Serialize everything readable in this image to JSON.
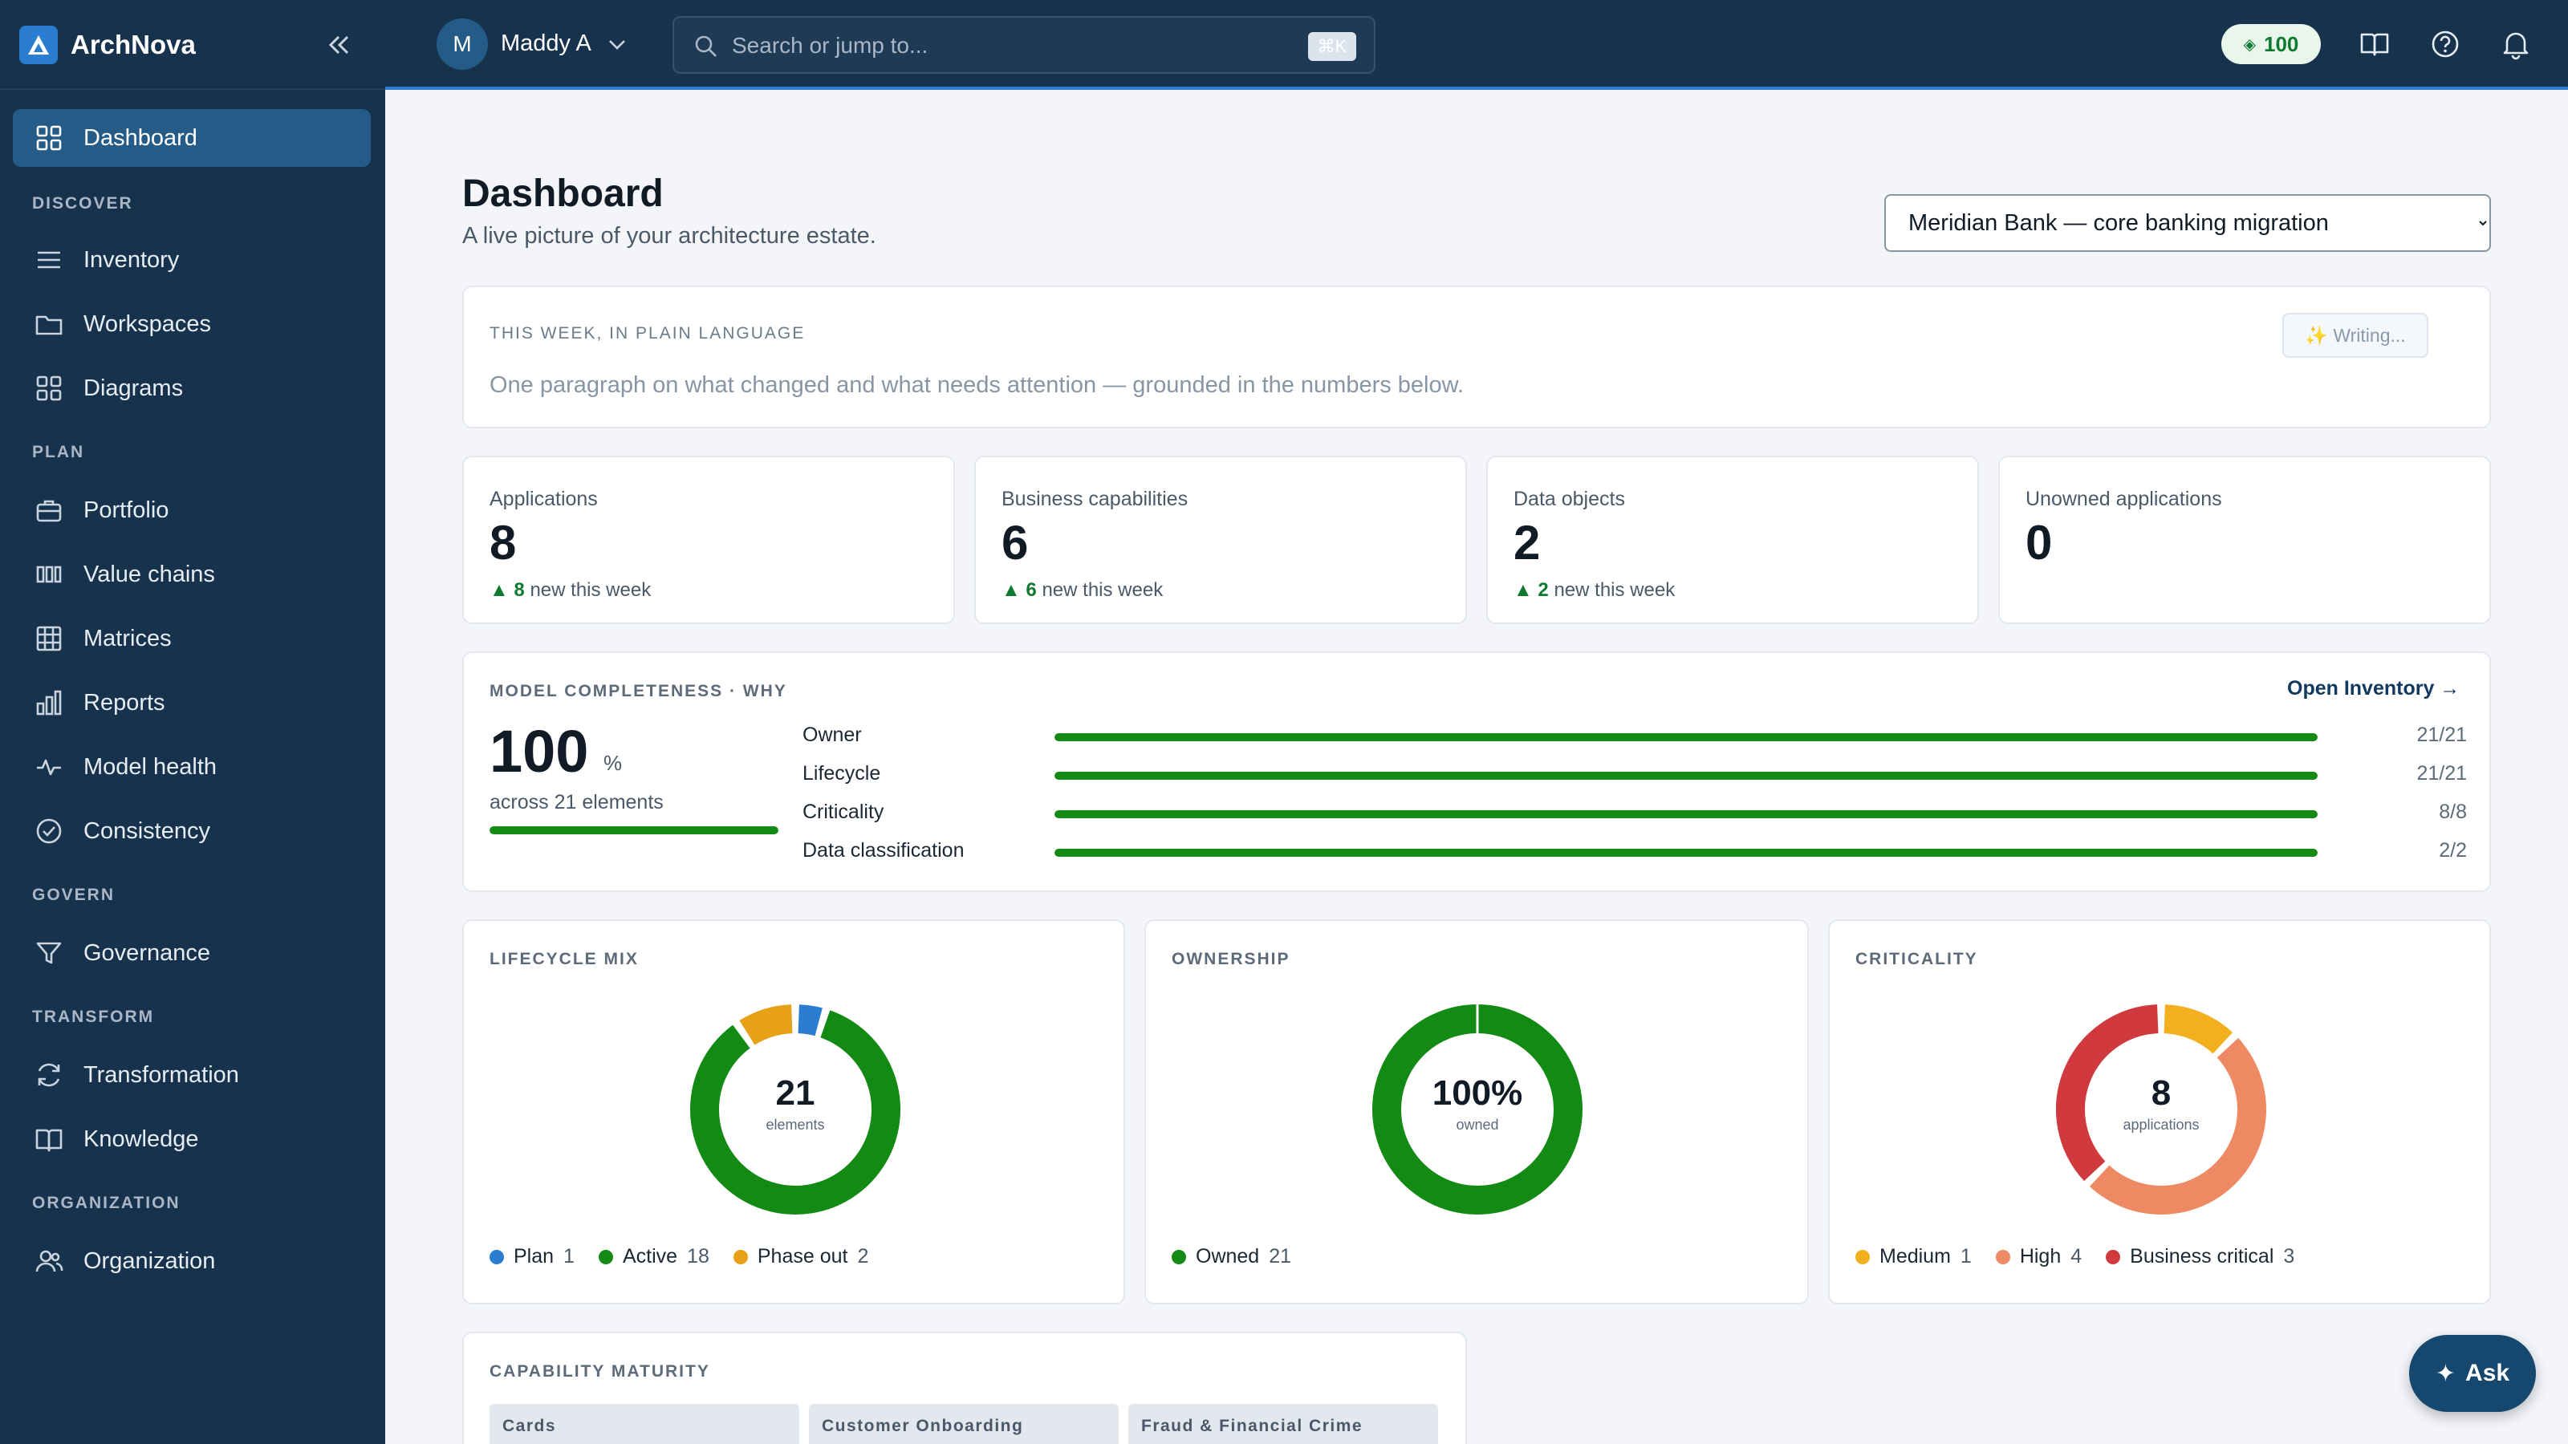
{
  "app": {
    "name": "ArchNova"
  },
  "sidebar": {
    "dashboard_label": "Dashboard",
    "sections": [
      {
        "title": "DISCOVER",
        "items": [
          {
            "label": "Inventory",
            "icon": "list-icon"
          },
          {
            "label": "Workspaces",
            "icon": "folder-icon"
          },
          {
            "label": "Diagrams",
            "icon": "grid-icon"
          }
        ]
      },
      {
        "title": "PLAN",
        "items": [
          {
            "label": "Portfolio",
            "icon": "briefcase-icon"
          },
          {
            "label": "Value chains",
            "icon": "columns-icon"
          },
          {
            "label": "Matrices",
            "icon": "table-icon"
          },
          {
            "label": "Reports",
            "icon": "bar-chart-icon"
          },
          {
            "label": "Model health",
            "icon": "pulse-icon"
          },
          {
            "label": "Consistency",
            "icon": "check-circle-icon"
          }
        ]
      },
      {
        "title": "GOVERN",
        "items": [
          {
            "label": "Governance",
            "icon": "filter-icon"
          }
        ]
      },
      {
        "title": "TRANSFORM",
        "items": [
          {
            "label": "Transformation",
            "icon": "refresh-icon"
          },
          {
            "label": "Knowledge",
            "icon": "book-icon"
          }
        ]
      },
      {
        "title": "ORGANIZATION",
        "items": [
          {
            "label": "Organization",
            "icon": "users-icon"
          }
        ]
      }
    ]
  },
  "topbar": {
    "user_initial": "M",
    "user_name": "Maddy A",
    "search_placeholder": "Search or jump to...",
    "search_shortcut": "⌘K",
    "credits": "100"
  },
  "page": {
    "title": "Dashboard",
    "subtitle": "A live picture of your architecture estate.",
    "scope_selected": "Meridian Bank — core banking migration"
  },
  "summary": {
    "eyebrow": "THIS WEEK, IN PLAIN LANGUAGE",
    "text": "One paragraph on what changed and what needs attention — grounded in the numbers below.",
    "button": "✨ Writing..."
  },
  "stats": [
    {
      "label": "Applications",
      "value": "8",
      "delta_value": "8",
      "delta_text": "new this week"
    },
    {
      "label": "Business capabilities",
      "value": "6",
      "delta_value": "6",
      "delta_text": "new this week"
    },
    {
      "label": "Data objects",
      "value": "2",
      "delta_value": "2",
      "delta_text": "new this week"
    },
    {
      "label": "Unowned applications",
      "value": "0"
    }
  ],
  "completeness": {
    "eyebrow": "MODEL COMPLETENESS · WHY",
    "open_link": "Open Inventory →",
    "percent": "100",
    "unit": "%",
    "across": "across 21 elements",
    "fraction": 1.0,
    "metrics": [
      {
        "label": "Owner",
        "count": "21/21",
        "fraction": 1.0
      },
      {
        "label": "Lifecycle",
        "count": "21/21",
        "fraction": 1.0
      },
      {
        "label": "Criticality",
        "count": "8/8",
        "fraction": 1.0
      },
      {
        "label": "Data classification",
        "count": "2/2",
        "fraction": 1.0
      }
    ]
  },
  "donuts": [
    {
      "eyebrow": "LIFECYCLE MIX",
      "center_value": "21",
      "center_label": "elements",
      "segments": [
        {
          "label": "Plan",
          "value": 1,
          "color": "#2a7dd1"
        },
        {
          "label": "Active",
          "value": 18,
          "color": "#138a14"
        },
        {
          "label": "Phase out",
          "value": 2,
          "color": "#e6a117"
        }
      ],
      "segment_order": [
        0,
        1,
        2
      ]
    },
    {
      "eyebrow": "OWNERSHIP",
      "center_value": "100%",
      "center_label": "owned",
      "segments": [
        {
          "label": "Owned",
          "value": 21,
          "color": "#138a14"
        }
      ],
      "segment_order": [
        0
      ]
    },
    {
      "eyebrow": "CRITICALITY",
      "center_value": "8",
      "center_label": "applications",
      "segments": [
        {
          "label": "Medium",
          "value": 1,
          "color": "#f2b01e"
        },
        {
          "label": "High",
          "value": 4,
          "color": "#ee8a63"
        },
        {
          "label": "Business critical",
          "value": 3,
          "color": "#d0393e"
        }
      ],
      "segment_order": [
        0,
        1,
        2
      ]
    }
  ],
  "maturity": {
    "eyebrow": "CAPABILITY MATURITY",
    "columns": [
      "Cards",
      "Customer Onboarding",
      "Fraud & Financial Crime"
    ]
  },
  "ask_button": {
    "label": "Ask",
    "icon": "✦"
  },
  "colors": {
    "accent": "#2a7dd1",
    "sidebar": "#17324c",
    "success": "#138a14"
  }
}
